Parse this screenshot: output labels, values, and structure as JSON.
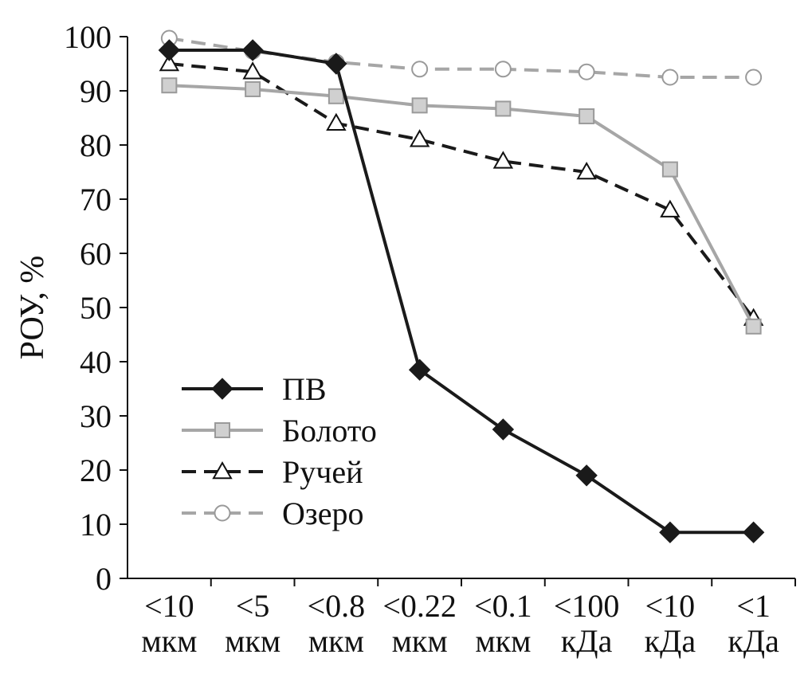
{
  "chart_data": {
    "type": "line",
    "title": "",
    "xlabel": "",
    "ylabel": "РОУ, %",
    "ylim": [
      0,
      100
    ],
    "yticks": [
      0,
      10,
      20,
      30,
      40,
      50,
      60,
      70,
      80,
      90,
      100
    ],
    "grid": false,
    "legend_position": "lower-left",
    "categories": [
      [
        "<10",
        "мкм"
      ],
      [
        "<5",
        "мкм"
      ],
      [
        "<0.8",
        "мкм"
      ],
      [
        "<0.22",
        "мкм"
      ],
      [
        "<0.1",
        "мкм"
      ],
      [
        "<100",
        "кДа"
      ],
      [
        "<10",
        "кДа"
      ],
      [
        "<1",
        "кДа"
      ]
    ],
    "series": [
      {
        "name": "ПВ",
        "values": [
          97.5,
          97.5,
          95,
          38.5,
          27.5,
          19,
          8.5,
          8.5
        ],
        "color": "#1a1a1a",
        "marker": "diamond",
        "dash": "solid"
      },
      {
        "name": "Болото",
        "values": [
          91,
          90.3,
          89,
          87.3,
          86.7,
          85.3,
          75.5,
          46.5
        ],
        "color": "#a6a6a6",
        "marker": "square",
        "dash": "solid"
      },
      {
        "name": "Ручей",
        "values": [
          95,
          93.5,
          84,
          81,
          77,
          75,
          68,
          48
        ],
        "color": "#1a1a1a",
        "marker": "triangle",
        "dash": "dashed"
      },
      {
        "name": "Озеро",
        "values": [
          99.7,
          97.3,
          95.3,
          94,
          94,
          93.5,
          92.5,
          92.5
        ],
        "color": "#a6a6a6",
        "marker": "circle",
        "dash": "dashed"
      }
    ]
  }
}
